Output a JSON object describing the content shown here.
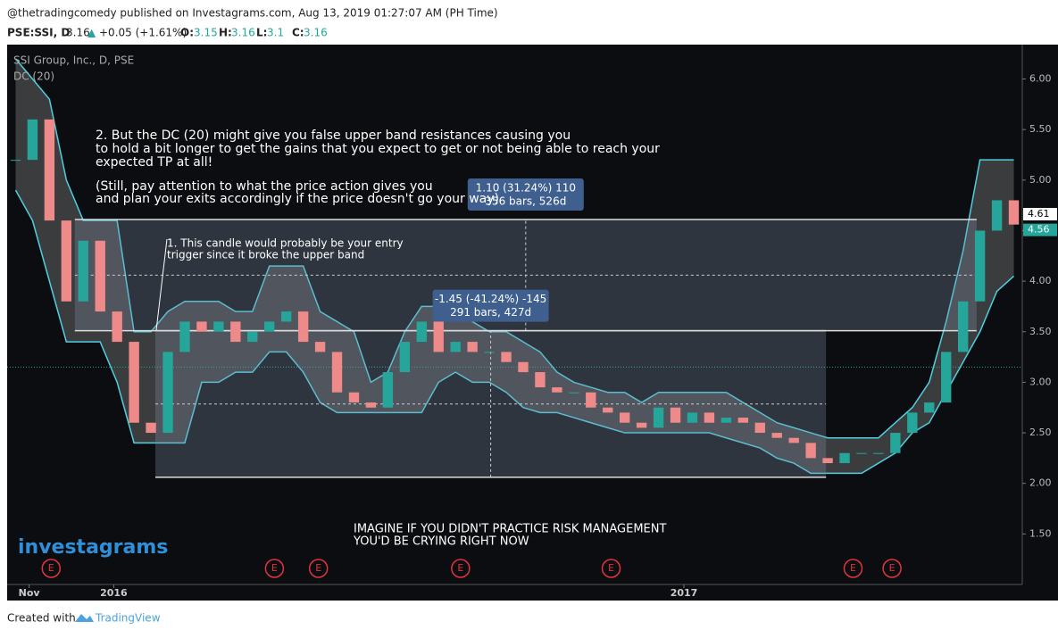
{
  "header": {
    "publisher": "@thetradingcomedy published on Investagrams.com, Aug 13, 2019 01:27:07 AM (PH Time)",
    "symbol": "PSE:SSI, D",
    "last": 3.16,
    "arrow": "▲",
    "change": "+0.05 (+1.61%)",
    "o_label": "O:",
    "open": 3.15,
    "h_label": "H:",
    "high": 3.16,
    "l_label": "L:",
    "low": 3.1,
    "c_label": "C:",
    "close": 3.16
  },
  "footer": {
    "created": "Created with",
    "brand": "TradingView"
  },
  "chart_data": {
    "type": "candlestick",
    "title": "SSI Group, Inc., D, PSE",
    "indicator": "DC (20)",
    "watermark": "investagrams",
    "values": [
      5.2,
      5.6,
      4.6,
      3.8,
      4.4,
      3.7,
      3.4,
      2.6,
      2.5,
      3.3,
      3.6,
      3.5,
      3.6,
      3.4,
      3.5,
      3.6,
      3.7,
      3.4,
      3.3,
      2.9,
      2.8,
      2.75,
      3.1,
      3.4,
      3.6,
      3.3,
      3.4,
      3.3,
      3.3,
      3.2,
      3.1,
      2.95,
      2.9,
      2.9,
      2.75,
      2.7,
      2.6,
      2.55,
      2.75,
      2.6,
      2.7,
      2.6,
      2.65,
      2.6,
      2.5,
      2.45,
      2.4,
      2.25,
      2.2,
      2.3,
      2.3,
      2.3,
      2.5,
      2.7,
      2.8,
      3.3,
      3.8,
      4.5,
      4.8,
      4.56
    ],
    "upper": [
      6.2,
      6.0,
      5.8,
      5.0,
      4.6,
      4.6,
      4.6,
      3.5,
      3.5,
      3.7,
      3.8,
      3.8,
      3.8,
      3.7,
      3.7,
      4.15,
      4.15,
      4.15,
      3.7,
      3.6,
      3.5,
      3.0,
      3.1,
      3.5,
      3.75,
      3.75,
      3.7,
      3.6,
      3.5,
      3.5,
      3.4,
      3.3,
      3.1,
      3.0,
      2.95,
      2.9,
      2.9,
      2.8,
      2.9,
      2.9,
      2.9,
      2.9,
      2.9,
      2.8,
      2.7,
      2.6,
      2.55,
      2.5,
      2.45,
      2.45,
      2.45,
      2.45,
      2.6,
      2.75,
      3.0,
      3.6,
      4.3,
      5.2,
      5.2,
      5.2
    ],
    "lower": [
      4.9,
      4.6,
      4.0,
      3.4,
      3.4,
      3.4,
      3.0,
      2.4,
      2.4,
      2.4,
      2.4,
      3.0,
      3.0,
      3.1,
      3.1,
      3.3,
      3.3,
      3.1,
      2.8,
      2.7,
      2.7,
      2.7,
      2.7,
      2.7,
      2.7,
      3.0,
      3.1,
      3.0,
      3.0,
      2.9,
      2.75,
      2.7,
      2.7,
      2.65,
      2.6,
      2.55,
      2.5,
      2.5,
      2.5,
      2.5,
      2.5,
      2.5,
      2.45,
      2.4,
      2.35,
      2.25,
      2.2,
      2.1,
      2.1,
      2.1,
      2.1,
      2.2,
      2.3,
      2.5,
      2.6,
      2.9,
      3.2,
      3.5,
      3.9,
      4.05
    ],
    "xlim": [
      0,
      60
    ],
    "ylim": [
      1.0,
      6.34
    ],
    "xticks": [
      {
        "value": 1.3,
        "label": "Nov"
      },
      {
        "value": 6.3,
        "label": "2016"
      },
      {
        "value": 40,
        "label": "2017"
      }
    ],
    "yticks": [
      {
        "value": 6,
        "label": "6.00"
      },
      {
        "value": 5.5,
        "label": "5.50"
      },
      {
        "value": 5,
        "label": "5.00"
      },
      {
        "value": 4.5,
        "label": "4.50"
      },
      {
        "value": 4,
        "label": "4.00"
      },
      {
        "value": 3.5,
        "label": "3.50"
      },
      {
        "value": 3,
        "label": "3.00"
      },
      {
        "value": 2.5,
        "label": "2.50"
      },
      {
        "value": 2,
        "label": "2.00"
      },
      {
        "value": 1.5,
        "label": "1.50"
      }
    ],
    "axis_marks": [
      4.61,
      4.56
    ],
    "level": 3.15,
    "measures": [
      {
        "x_from": 4.0,
        "x_to": 57.3,
        "y_from": 3.51,
        "y_to": 4.61,
        "labels": [
          "1.10 (31.24%) 110",
          "356 bars, 526d"
        ]
      },
      {
        "x_from": 8.76,
        "x_to": 48.4,
        "y_from": 2.06,
        "y_to": 3.51,
        "labels": [
          "-1.45 (-41.24%) -145",
          "291 bars, 427d"
        ]
      }
    ],
    "annotations": [
      "2. But the DC (20) might give you false upper band resistances causing you",
      "to hold a bit longer to get the gains that you expect to get or not being able to reach your",
      "expected TP at all!",
      "(Still, pay attention to what the price action gives you",
      "and plan your exits accordingly if the price doesn't go your way)",
      "1. This candle would probably be your entry",
      "trigger since it broke the upper band",
      "IMAGINE IF YOU DIDN'T PRACTICE RISK MANAGEMENT",
      "YOU'D BE CRYING RIGHT NOW"
    ],
    "earnings": [
      "E",
      "E",
      "E",
      "E",
      "E",
      "E",
      "E"
    ],
    "earnings_x": [
      2.6,
      15.8,
      18.4,
      26.8,
      35.7,
      50,
      52.3
    ]
  }
}
